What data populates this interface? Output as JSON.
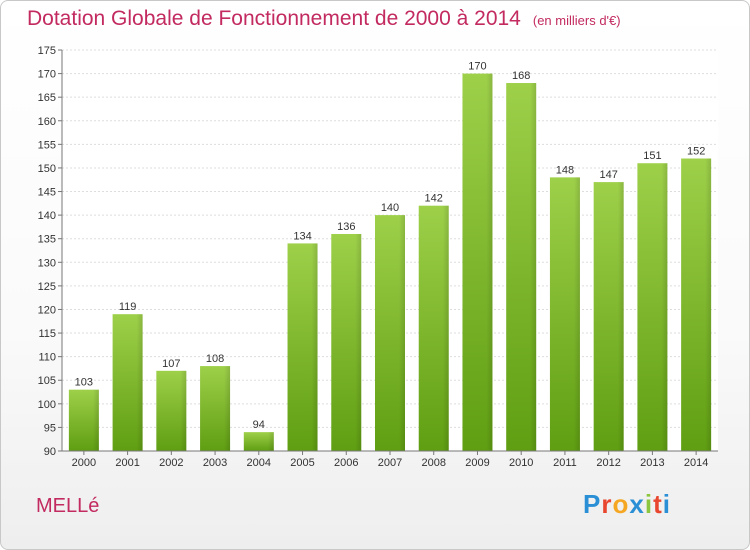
{
  "chart_data": {
    "type": "bar",
    "title": "Dotation Globale de Fonctionnement de 2000 à 2014",
    "subtitle": "(en milliers d'€)",
    "categories": [
      "2000",
      "2001",
      "2002",
      "2003",
      "2004",
      "2005",
      "2006",
      "2007",
      "2008",
      "2009",
      "2010",
      "2011",
      "2012",
      "2013",
      "2014"
    ],
    "values": [
      103,
      119,
      107,
      108,
      94,
      134,
      136,
      140,
      142,
      170,
      168,
      148,
      147,
      151,
      152
    ],
    "ylim": [
      90,
      175
    ],
    "yticks": [
      90,
      95,
      100,
      105,
      110,
      115,
      120,
      125,
      130,
      135,
      140,
      145,
      150,
      155,
      160,
      165,
      170,
      175
    ],
    "grid": true,
    "bar_color": "#8cc63f",
    "title_color": "#c22a60"
  },
  "footer": {
    "commune": "MELLé",
    "brand": "Proxiti"
  },
  "brand_colors": [
    "#2b8fd6",
    "#e8462e",
    "#f5a623",
    "#2b8fd6",
    "#8cc63f",
    "#e8462e",
    "#2b8fd6"
  ]
}
